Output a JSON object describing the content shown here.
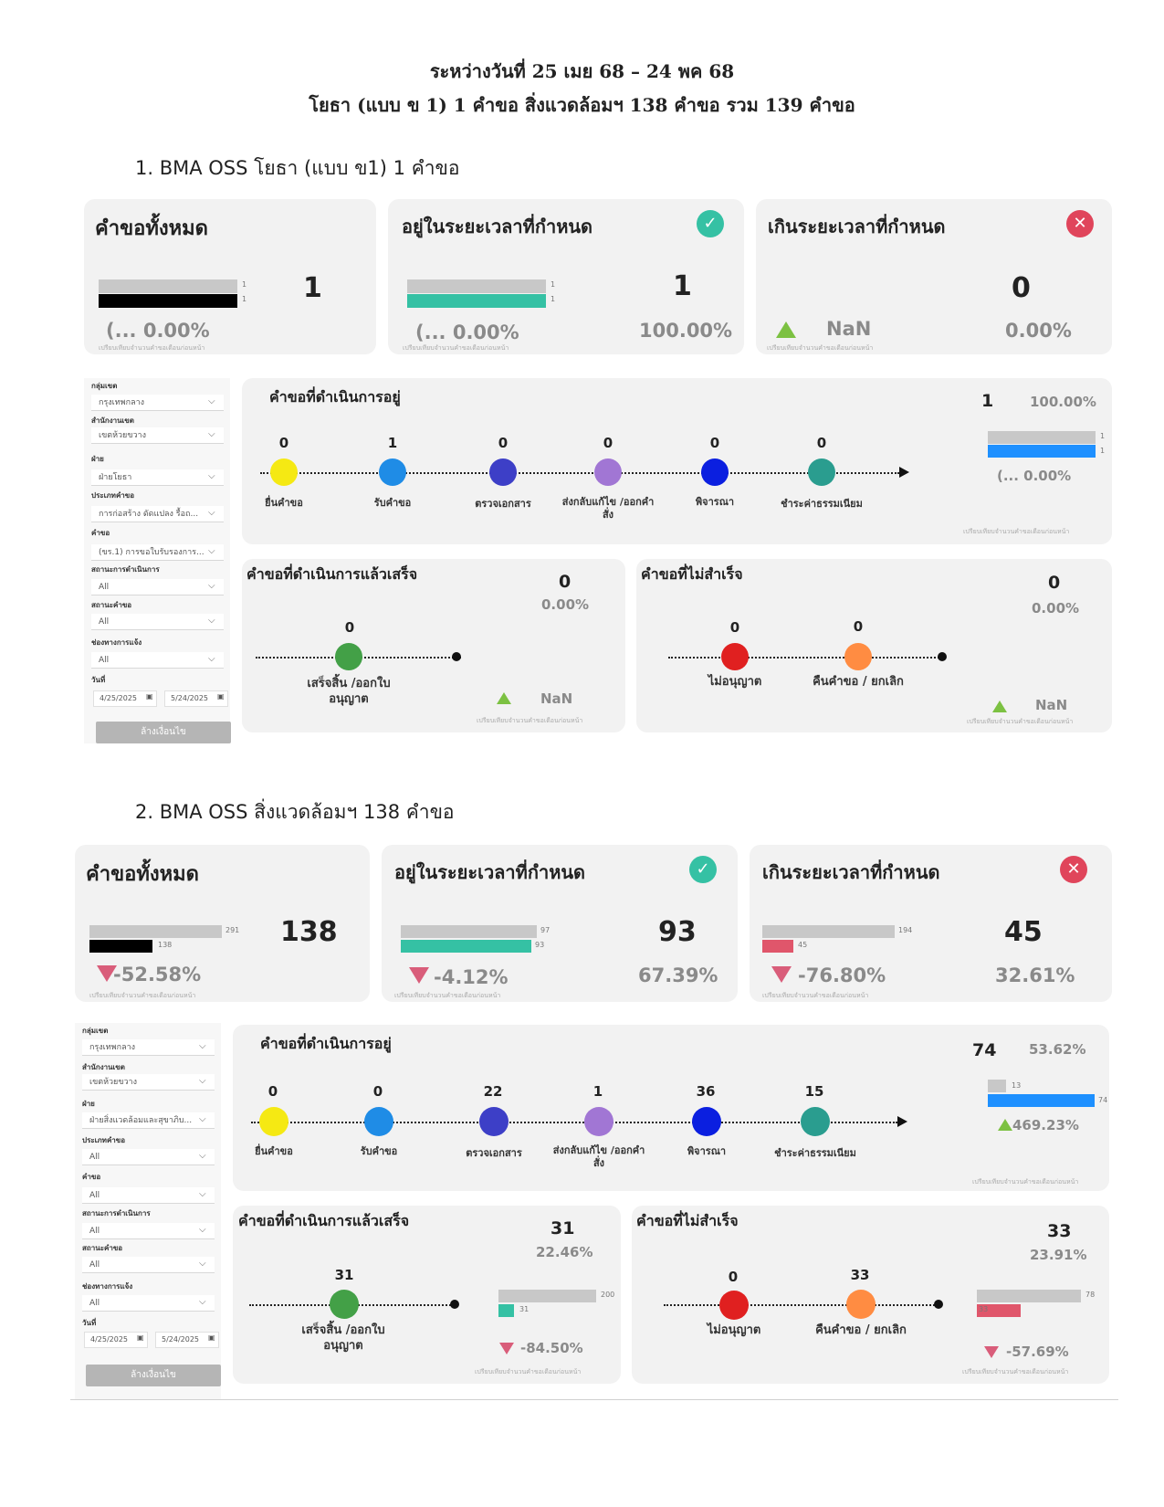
{
  "header": {
    "line1": "ระหว่างวันที่ 25 เมย 68 – 24 พค 68",
    "line2": "โยธา (แบบ ข 1) 1 คำขอ  สิ่งแวดล้อมฯ 138 คำขอ รวม  139 คำขอ"
  },
  "colors": {
    "teal": "#35c1a4",
    "blue": "#1e90ff",
    "red_x": "#e0455b",
    "bar_gray": "#c8c8c8",
    "bar_black": "#000000",
    "bar_red": "#e0566b",
    "up_green": "#7cc142",
    "down_pink": "#d95d7a"
  },
  "common": {
    "total_title": "คำขอทั้งหมด",
    "ontime_title": "อยู่ในระยะเวลาที่กำหนด",
    "late_title": "เกินระยะเวลาที่กำหนด",
    "compare_note": "เปรียบเทียบจำนวนคำขอเดือนก่อนหน้า",
    "inprogress_title": "คำขอที่ดำเนินการอยู่",
    "done_title": "คำขอที่ดำเนินการแล้วเสร็จ",
    "failed_title": "คำขอที่ไม่สำเร็จ",
    "stage_labels": [
      "ยื่นคำขอ",
      "รับคำขอ",
      "ตรวจเอกสาร",
      "ส่งกลับแก้ไข /ออกคำสั่ง",
      "พิจารณา",
      "ชำระค่าธรรมเนียม"
    ],
    "done_label": "เสร็จสิ้น /ออกใบอนุญาต",
    "reject_label": "ไม่อนุญาต",
    "cancel_label": "คืนคำขอ / ยกเลิก",
    "filter_labels": [
      "กลุ่มเขต",
      "สำนักงานเขต",
      "ฝ่าย",
      "ประเภทคำขอ",
      "คำขอ",
      "สถานะการดำเนินการ",
      "สถานะคำขอ",
      "ช่องทางการแจ้ง",
      "วันที่"
    ],
    "clear_button": "ล้างเงื่อนไข",
    "date_from": "4/25/2025",
    "date_to": "5/24/2025",
    "icon_ok": "check-circle-icon",
    "icon_x": "x-circle-icon"
  },
  "section1": {
    "title": "1. BMA OSS โยธา (แบบ ข1) 1 คำขอ",
    "total": {
      "value": "1",
      "prev": "1",
      "curr": "1",
      "change": "(... 0.00%"
    },
    "ontime": {
      "value": "1",
      "pct": "100.00%",
      "prev": "1",
      "curr": "1",
      "change": "(... 0.00%"
    },
    "late": {
      "value": "0",
      "pct": "0.00%",
      "change": "NaN"
    },
    "filters": [
      "กรุงเทพกลาง",
      "เขตห้วยขวาง",
      "ฝ่ายโยธา",
      "การก่อสร้าง ดัดแปลง รื้อถ...",
      "(ขร.1) การขอใบรับรองการ...",
      "All",
      "All",
      "All"
    ],
    "inprogress": {
      "value": "1",
      "pct": "100.00%",
      "stage_counts": [
        "0",
        "1",
        "0",
        "0",
        "0",
        "0"
      ],
      "prev": "1",
      "curr": "1",
      "change": "(... 0.00%"
    },
    "done": {
      "value": "0",
      "pct": "0.00%",
      "count": "0",
      "change": "NaN"
    },
    "failed": {
      "value": "0",
      "pct": "0.00%",
      "reject_count": "0",
      "cancel_count": "0",
      "change": "NaN"
    }
  },
  "section2": {
    "title": "2. BMA OSS สิ่งแวดล้อมฯ 138 คำขอ",
    "total": {
      "value": "138",
      "prev": "291",
      "curr": "138",
      "change": "-52.58%"
    },
    "ontime": {
      "value": "93",
      "pct": "67.39%",
      "prev": "97",
      "curr": "93",
      "change": "-4.12%"
    },
    "late": {
      "value": "45",
      "pct": "32.61%",
      "prev": "194",
      "curr": "45",
      "change": "-76.80%"
    },
    "filters": [
      "กรุงเทพกลาง",
      "เขตห้วยขวาง",
      "ฝ่ายสิ่งแวดล้อมและสุขาภิบ...",
      "All",
      "All",
      "All",
      "All",
      "All"
    ],
    "inprogress": {
      "value": "74",
      "pct": "53.62%",
      "stage_counts": [
        "0",
        "0",
        "22",
        "1",
        "36",
        "15"
      ],
      "prev": "13",
      "curr": "74",
      "change": "469.23%"
    },
    "done": {
      "value": "31",
      "pct": "22.46%",
      "count": "31",
      "prev": "200",
      "curr": "31",
      "change": "-84.50%"
    },
    "failed": {
      "value": "33",
      "pct": "23.91%",
      "reject_count": "0",
      "cancel_count": "33",
      "prev": "78",
      "curr": "33",
      "change": "-57.69%"
    }
  }
}
